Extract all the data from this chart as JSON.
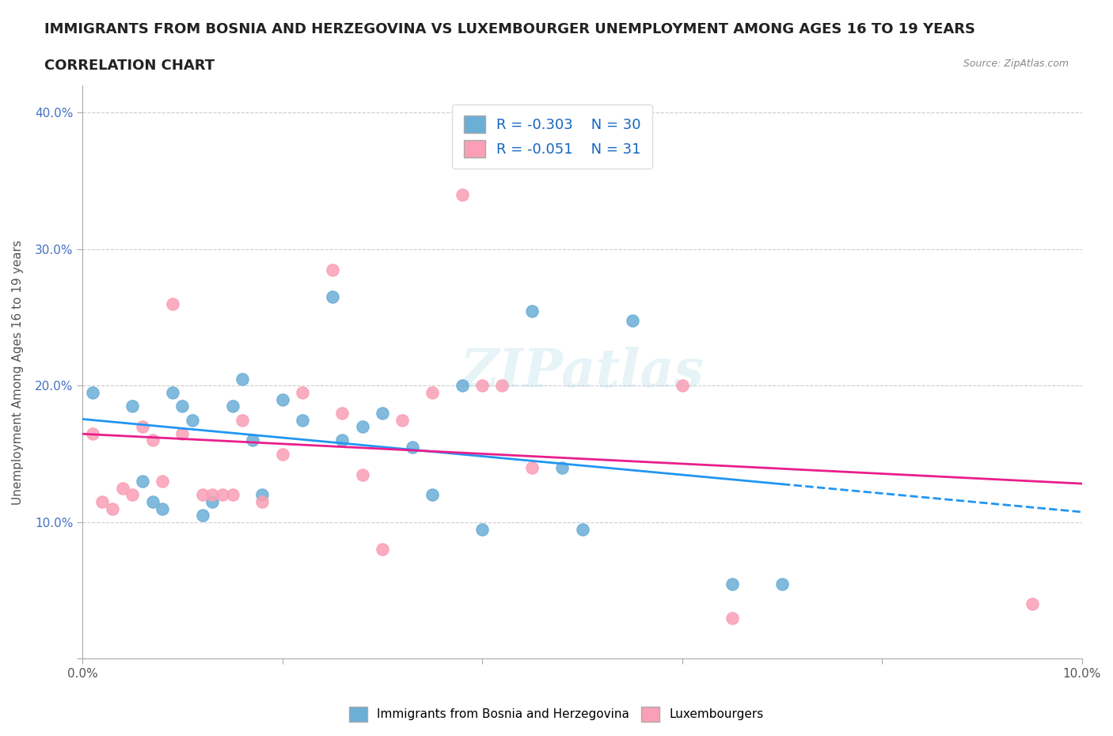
{
  "title_line1": "IMMIGRANTS FROM BOSNIA AND HERZEGOVINA VS LUXEMBOURGER UNEMPLOYMENT AMONG AGES 16 TO 19 YEARS",
  "title_line2": "CORRELATION CHART",
  "source_text": "Source: ZipAtlas.com",
  "xlabel": "",
  "ylabel": "Unemployment Among Ages 16 to 19 years",
  "xlim": [
    0,
    0.1
  ],
  "ylim": [
    0,
    0.42
  ],
  "x_ticks": [
    0.0,
    0.02,
    0.04,
    0.06,
    0.08,
    0.1
  ],
  "x_tick_labels": [
    "0.0%",
    "",
    "",
    "",
    "",
    "10.0%"
  ],
  "y_ticks": [
    0.0,
    0.1,
    0.2,
    0.3,
    0.4
  ],
  "y_tick_labels": [
    "",
    "10.0%",
    "20.0%",
    "30.0%",
    "40.0%"
  ],
  "legend_r1": "R = -0.303",
  "legend_n1": "N = 30",
  "legend_r2": "R = -0.051",
  "legend_n2": "N = 31",
  "blue_color": "#6baed6",
  "pink_color": "#fa9fb5",
  "blue_line_color": "#2196F3",
  "pink_line_color": "#E91E8C",
  "watermark": "ZIPatlas",
  "blue_scatter_x": [
    0.001,
    0.005,
    0.006,
    0.007,
    0.008,
    0.009,
    0.01,
    0.011,
    0.012,
    0.013,
    0.015,
    0.016,
    0.017,
    0.018,
    0.02,
    0.022,
    0.025,
    0.026,
    0.028,
    0.03,
    0.033,
    0.035,
    0.038,
    0.04,
    0.045,
    0.048,
    0.05,
    0.055,
    0.065,
    0.07
  ],
  "blue_scatter_y": [
    0.195,
    0.185,
    0.13,
    0.115,
    0.11,
    0.195,
    0.185,
    0.175,
    0.105,
    0.115,
    0.185,
    0.205,
    0.16,
    0.12,
    0.19,
    0.175,
    0.265,
    0.16,
    0.17,
    0.18,
    0.155,
    0.12,
    0.2,
    0.095,
    0.255,
    0.14,
    0.095,
    0.248,
    0.055,
    0.055
  ],
  "pink_scatter_x": [
    0.001,
    0.002,
    0.003,
    0.004,
    0.005,
    0.006,
    0.007,
    0.008,
    0.009,
    0.01,
    0.012,
    0.013,
    0.014,
    0.015,
    0.016,
    0.018,
    0.02,
    0.022,
    0.025,
    0.026,
    0.028,
    0.03,
    0.032,
    0.035,
    0.038,
    0.04,
    0.042,
    0.045,
    0.06,
    0.065,
    0.095
  ],
  "pink_scatter_y": [
    0.165,
    0.115,
    0.11,
    0.125,
    0.12,
    0.17,
    0.16,
    0.13,
    0.26,
    0.165,
    0.12,
    0.12,
    0.12,
    0.12,
    0.175,
    0.115,
    0.15,
    0.195,
    0.285,
    0.18,
    0.135,
    0.08,
    0.175,
    0.195,
    0.34,
    0.2,
    0.2,
    0.14,
    0.2,
    0.03,
    0.04
  ]
}
